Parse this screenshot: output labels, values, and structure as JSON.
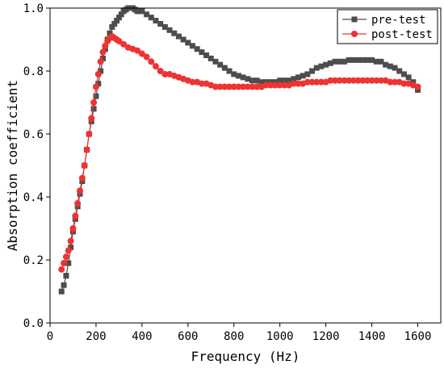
{
  "chart_data": {
    "type": "line",
    "title": "",
    "xlabel": "Frequency (Hz)",
    "ylabel": "Absorption coefficient",
    "xlim": [
      0,
      1700
    ],
    "ylim": [
      0,
      1.0
    ],
    "xticks": [
      0,
      200,
      400,
      600,
      800,
      1000,
      1200,
      1400,
      1600
    ],
    "yticks": [
      0.0,
      0.2,
      0.4,
      0.6,
      0.8,
      1.0
    ],
    "xtick_labels": [
      "0",
      "200",
      "400",
      "600",
      "800",
      "1000",
      "1200",
      "1400",
      "1600"
    ],
    "ytick_labels": [
      "0.0",
      "0.2",
      "0.4",
      "0.6",
      "0.8",
      "1.0"
    ],
    "grid": false,
    "legend_position": "top-right",
    "series": [
      {
        "name": "pre-test",
        "color": "#4d4d4d",
        "marker": "square",
        "x": [
          50,
          60,
          70,
          80,
          90,
          100,
          110,
          120,
          130,
          140,
          150,
          160,
          170,
          180,
          190,
          200,
          210,
          220,
          230,
          240,
          250,
          260,
          270,
          280,
          290,
          300,
          310,
          320,
          330,
          340,
          350,
          360,
          370,
          380,
          390,
          400,
          420,
          440,
          460,
          480,
          500,
          520,
          540,
          560,
          580,
          600,
          620,
          640,
          660,
          680,
          700,
          720,
          740,
          760,
          780,
          800,
          820,
          840,
          860,
          880,
          900,
          920,
          940,
          960,
          980,
          1000,
          1020,
          1040,
          1060,
          1080,
          1100,
          1120,
          1140,
          1160,
          1180,
          1200,
          1220,
          1240,
          1260,
          1280,
          1300,
          1320,
          1340,
          1360,
          1380,
          1400,
          1420,
          1440,
          1460,
          1480,
          1500,
          1520,
          1540,
          1560,
          1580,
          1600
        ],
        "values": [
          0.1,
          0.12,
          0.15,
          0.19,
          0.24,
          0.29,
          0.33,
          0.37,
          0.41,
          0.45,
          0.5,
          0.55,
          0.6,
          0.64,
          0.68,
          0.72,
          0.76,
          0.8,
          0.84,
          0.87,
          0.9,
          0.92,
          0.94,
          0.95,
          0.96,
          0.97,
          0.98,
          0.99,
          0.995,
          1.0,
          1.0,
          1.0,
          0.995,
          0.99,
          0.99,
          0.99,
          0.98,
          0.97,
          0.96,
          0.95,
          0.94,
          0.93,
          0.92,
          0.91,
          0.9,
          0.89,
          0.88,
          0.87,
          0.86,
          0.85,
          0.84,
          0.83,
          0.82,
          0.81,
          0.8,
          0.79,
          0.785,
          0.78,
          0.775,
          0.77,
          0.77,
          0.765,
          0.765,
          0.765,
          0.765,
          0.77,
          0.77,
          0.77,
          0.775,
          0.78,
          0.785,
          0.79,
          0.8,
          0.81,
          0.815,
          0.82,
          0.825,
          0.83,
          0.83,
          0.83,
          0.835,
          0.835,
          0.835,
          0.835,
          0.835,
          0.835,
          0.83,
          0.83,
          0.82,
          0.815,
          0.81,
          0.8,
          0.79,
          0.78,
          0.765,
          0.74
        ]
      },
      {
        "name": "post-test",
        "color": "#ee3333",
        "marker": "circle",
        "x": [
          50,
          60,
          70,
          80,
          90,
          100,
          110,
          120,
          130,
          140,
          150,
          160,
          170,
          180,
          190,
          200,
          210,
          220,
          230,
          240,
          250,
          260,
          270,
          280,
          290,
          300,
          320,
          340,
          360,
          380,
          400,
          420,
          440,
          460,
          480,
          500,
          520,
          540,
          560,
          580,
          600,
          620,
          640,
          660,
          680,
          700,
          720,
          740,
          760,
          780,
          800,
          820,
          840,
          860,
          880,
          900,
          920,
          940,
          960,
          980,
          1000,
          1020,
          1040,
          1060,
          1080,
          1100,
          1120,
          1140,
          1160,
          1180,
          1200,
          1220,
          1240,
          1260,
          1280,
          1300,
          1320,
          1340,
          1360,
          1380,
          1400,
          1420,
          1440,
          1460,
          1480,
          1500,
          1520,
          1540,
          1560,
          1580,
          1600
        ],
        "values": [
          0.17,
          0.19,
          0.21,
          0.23,
          0.26,
          0.3,
          0.34,
          0.38,
          0.42,
          0.46,
          0.5,
          0.55,
          0.6,
          0.65,
          0.7,
          0.75,
          0.79,
          0.83,
          0.86,
          0.88,
          0.895,
          0.905,
          0.91,
          0.905,
          0.9,
          0.895,
          0.885,
          0.875,
          0.87,
          0.865,
          0.855,
          0.845,
          0.83,
          0.815,
          0.8,
          0.79,
          0.79,
          0.785,
          0.78,
          0.775,
          0.77,
          0.765,
          0.765,
          0.76,
          0.76,
          0.755,
          0.75,
          0.75,
          0.75,
          0.75,
          0.75,
          0.75,
          0.75,
          0.75,
          0.75,
          0.75,
          0.75,
          0.755,
          0.755,
          0.755,
          0.755,
          0.755,
          0.755,
          0.76,
          0.76,
          0.76,
          0.765,
          0.765,
          0.765,
          0.765,
          0.765,
          0.77,
          0.77,
          0.77,
          0.77,
          0.77,
          0.77,
          0.77,
          0.77,
          0.77,
          0.77,
          0.77,
          0.77,
          0.77,
          0.765,
          0.765,
          0.765,
          0.76,
          0.76,
          0.755,
          0.75
        ]
      }
    ]
  }
}
